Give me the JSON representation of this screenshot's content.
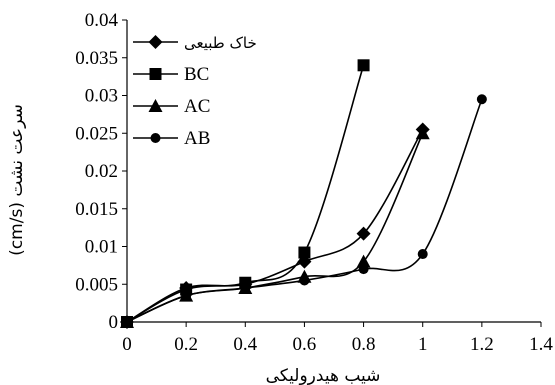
{
  "chart_data": {
    "type": "line",
    "title": "",
    "xlabel": "شیب هیدرولیکی",
    "ylabel": "سرعت نشت (cm/s)",
    "xlim": [
      0,
      1.4
    ],
    "ylim": [
      0,
      0.04
    ],
    "xticks": [
      "0",
      "0.2",
      "0.4",
      "0.6",
      "0.8",
      "1",
      "1.2",
      "1.4"
    ],
    "yticks": [
      "0",
      "0.005",
      "0.01",
      "0.015",
      "0.02",
      "0.025",
      "0.03",
      "0.035",
      "0.04"
    ],
    "grid": false,
    "legend_position": "top-left",
    "series": [
      {
        "name": "خاک طبیعی",
        "marker": "diamond",
        "x": [
          0,
          0.2,
          0.4,
          0.6,
          0.8,
          1.0
        ],
        "y": [
          0,
          0.0045,
          0.005,
          0.008,
          0.0117,
          0.0255
        ]
      },
      {
        "name": "BC",
        "marker": "square",
        "x": [
          0,
          0.2,
          0.4,
          0.6,
          0.8
        ],
        "y": [
          0,
          0.0043,
          0.0052,
          0.0092,
          0.034
        ]
      },
      {
        "name": "AC",
        "marker": "triangle",
        "x": [
          0,
          0.2,
          0.4,
          0.6,
          0.8,
          1.0
        ],
        "y": [
          0,
          0.0035,
          0.0045,
          0.006,
          0.008,
          0.025
        ]
      },
      {
        "name": "AB",
        "marker": "circle",
        "x": [
          0,
          0.2,
          0.4,
          0.6,
          0.8,
          1.0,
          1.2
        ],
        "y": [
          0,
          0.0035,
          0.0045,
          0.0055,
          0.007,
          0.009,
          0.0295
        ]
      }
    ]
  }
}
